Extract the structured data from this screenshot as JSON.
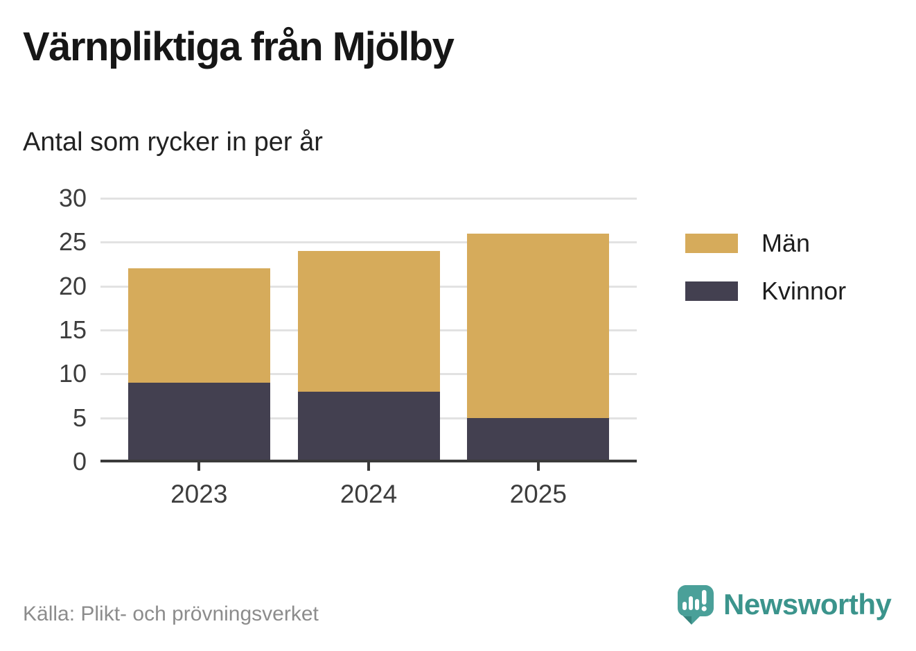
{
  "chart_data": {
    "type": "bar",
    "stacked": true,
    "title": "Värnpliktiga från Mjölby",
    "subtitle": "Antal som rycker in per år",
    "categories": [
      "2023",
      "2024",
      "2025"
    ],
    "series": [
      {
        "name": "Män",
        "color": "#d6ab5b",
        "values": [
          13,
          16,
          21
        ]
      },
      {
        "name": "Kvinnor",
        "color": "#434050",
        "values": [
          9,
          8,
          5
        ]
      }
    ],
    "stack_order_bottom_to_top": [
      "Kvinnor",
      "Män"
    ],
    "stacked_totals": [
      22,
      24,
      26
    ],
    "xlabel": "",
    "ylabel": "",
    "ylim": [
      0,
      30
    ],
    "yticks": [
      0,
      5,
      10,
      15,
      20,
      25,
      30
    ],
    "grid": true,
    "legend_position": "right"
  },
  "footer": {
    "source": "Källa: Plikt- och prövningsverket",
    "brand_wordmark": "Newsworthy"
  },
  "colors": {
    "men": "#d6ab5b",
    "women": "#434050",
    "grid": "#e2e2e2",
    "axis": "#3a3a3a",
    "brand_teal": "#3b948c"
  }
}
